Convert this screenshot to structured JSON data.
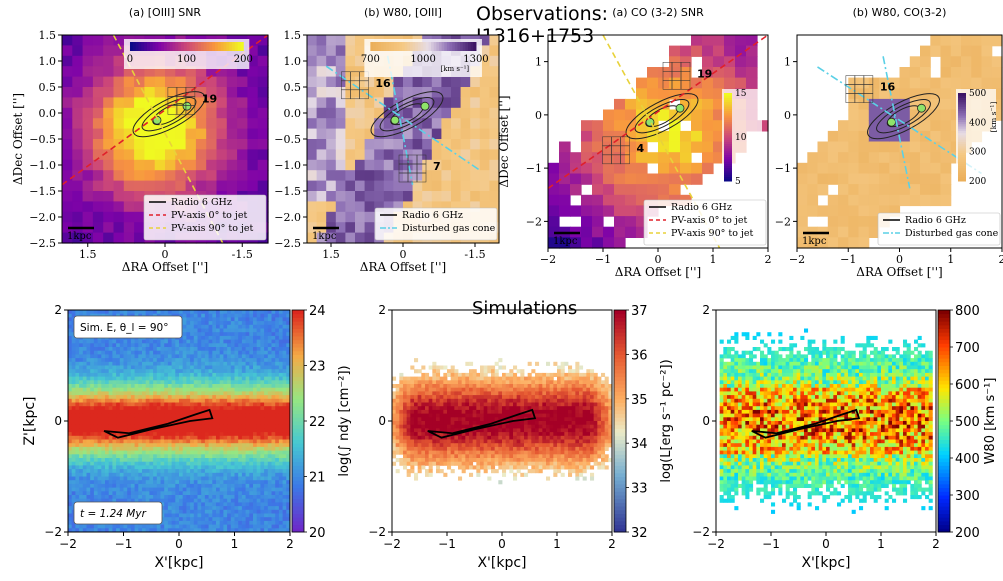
{
  "figure": {
    "observations_title": "Observations:",
    "observations_subtitle": "J1316+1753",
    "simulations_title": "Simulations"
  },
  "chart_data": [
    {
      "type": "heatmap",
      "panel_title": "(a) [OIII] SNR",
      "xlabel": "ΔRA Offset ['']",
      "ylabel": "ΔDec Offset ['']",
      "xlim": [
        2.0,
        -2.0
      ],
      "ylim": [
        -2.5,
        1.5
      ],
      "xticks": [
        -1.5,
        0,
        1.5
      ],
      "xtick_labels": [
        "-1.5",
        "0",
        "1.5"
      ],
      "yticks": [
        -2.5,
        -2.0,
        -1.5,
        -1.0,
        -0.5,
        0.0,
        0.5,
        1.0,
        1.5
      ],
      "ytick_labels": [
        "−2.5",
        "−2.0",
        "−1.5",
        "−1.0",
        "−0.5",
        "0.0",
        "0.5",
        "1.0",
        "1.5"
      ],
      "colorbar": {
        "ticks": [
          0,
          100,
          200
        ],
        "tick_labels": [
          "0",
          "100",
          "200"
        ],
        "colormap": "plasma",
        "orientation": "horizontal"
      },
      "annotations": [
        {
          "text": "19",
          "x": -0.6,
          "y": 0.3
        }
      ],
      "legend": {
        "position": "lower-right",
        "entries": [
          {
            "label": "Radio 6 GHz",
            "style": "solid",
            "color": "#000000"
          },
          {
            "label": "PV-axis 0° to jet",
            "style": "dashed",
            "color": "#e0202a"
          },
          {
            "label": "PV-axis 90° to jet",
            "style": "dashed",
            "color": "#e8d23a"
          }
        ]
      },
      "scalebar": "1kpc"
    },
    {
      "type": "heatmap",
      "panel_title": "(b) W80, [OIII]",
      "xlabel": "ΔRA Offset ['']",
      "ylabel": "",
      "xlim": [
        2.0,
        -2.0
      ],
      "ylim": [
        -2.5,
        1.5
      ],
      "xticks": [
        -1.5,
        0,
        1.5
      ],
      "xtick_labels": [
        "-1.5",
        "0",
        "1.5"
      ],
      "yticks": [
        -2.5,
        -2.0,
        -1.5,
        -1.0,
        -0.5,
        0.0,
        0.5,
        1.0,
        1.5
      ],
      "ytick_labels": [
        "−2.5",
        "−2.0",
        "−1.5",
        "−1.0",
        "−0.5",
        "0.0",
        "0.5",
        "1.0",
        "1.5"
      ],
      "colorbar": {
        "ticks": [
          700,
          1000,
          1300
        ],
        "tick_labels": [
          "700",
          "1000",
          "1300"
        ],
        "unit": "[km s⁻¹]",
        "colormap": "puor",
        "orientation": "horizontal"
      },
      "annotations": [
        {
          "text": "16",
          "x": 0.7,
          "y": 0.6
        },
        {
          "text": "7",
          "x": -0.5,
          "y": -1.0
        }
      ],
      "legend": {
        "position": "lower-right",
        "entries": [
          {
            "label": "Radio 6 GHz",
            "style": "solid",
            "color": "#000000"
          },
          {
            "label": "Disturbed gas cone",
            "style": "dashdot",
            "color": "#5ad0e6"
          }
        ]
      },
      "scalebar": "1kpc"
    },
    {
      "type": "heatmap",
      "panel_title": "(a) CO (3-2) SNR",
      "xlabel": "ΔRA Offset ['']",
      "ylabel": "ΔDec Offset ['']",
      "xlim": [
        -2,
        2
      ],
      "ylim": [
        -2.5,
        1.5
      ],
      "xticks": [
        -2,
        -1,
        0,
        1,
        2
      ],
      "xtick_labels": [
        "−2",
        "−1",
        "0",
        "1",
        "2"
      ],
      "yticks": [
        -2,
        -1,
        0,
        1
      ],
      "ytick_labels": [
        "−2",
        "−1",
        "0",
        "1"
      ],
      "colorbar": {
        "ticks": [
          5,
          10,
          15
        ],
        "tick_labels": [
          "5",
          "10",
          "15"
        ],
        "colormap": "plasma",
        "orientation": "vertical"
      },
      "annotations": [
        {
          "text": "19",
          "x": 0.6,
          "y": 0.8
        },
        {
          "text": "4",
          "x": -0.5,
          "y": -0.6
        }
      ],
      "legend": {
        "position": "lower-right",
        "entries": [
          {
            "label": "Radio 6 GHz",
            "style": "solid",
            "color": "#000000"
          },
          {
            "label": "PV-axis 0° to jet",
            "style": "dashed",
            "color": "#e0202a"
          },
          {
            "label": "PV-axis 90° to jet",
            "style": "dashed",
            "color": "#e8d23a"
          }
        ]
      },
      "scalebar": "1kpc"
    },
    {
      "type": "heatmap",
      "panel_title": "(b) W80, CO(3-2)",
      "xlabel": "ΔRA Offset ['']",
      "ylabel": "",
      "xlim": [
        -2,
        2
      ],
      "ylim": [
        -2.5,
        1.5
      ],
      "xticks": [
        -2,
        -1,
        0,
        1,
        2
      ],
      "xtick_labels": [
        "−2",
        "−1",
        "0",
        "1",
        "2"
      ],
      "yticks": [
        -2,
        -1,
        0,
        1
      ],
      "ytick_labels": [
        "−2",
        "−1",
        "0",
        "1"
      ],
      "colorbar": {
        "ticks": [
          200,
          300,
          400,
          500
        ],
        "tick_labels": [
          "200",
          "300",
          "400",
          "500"
        ],
        "unit": "[km s⁻¹]",
        "colormap": "puor",
        "orientation": "vertical"
      },
      "annotations": [
        {
          "text": "16",
          "x": -0.5,
          "y": 0.55
        }
      ],
      "legend": {
        "position": "lower-right",
        "entries": [
          {
            "label": "Radio 6 GHz",
            "style": "solid",
            "color": "#000000"
          },
          {
            "label": "Disturbed gas cone",
            "style": "dashdot",
            "color": "#5ad0e6"
          }
        ]
      },
      "scalebar": "1kpc"
    },
    {
      "type": "heatmap",
      "panel_title": "",
      "xlabel": "X'[kpc]",
      "ylabel": "Z'[kpc]",
      "xlim": [
        -2,
        2
      ],
      "ylim": [
        -2,
        2
      ],
      "xticks": [
        -2,
        -1,
        0,
        1,
        2
      ],
      "xtick_labels": [
        "−2",
        "−1",
        "0",
        "1",
        "2"
      ],
      "yticks": [
        -2,
        0,
        2
      ],
      "ytick_labels": [
        "−2",
        "0",
        "2"
      ],
      "colorbar": {
        "ticks": [
          20,
          21,
          22,
          23,
          24
        ],
        "tick_labels": [
          "20",
          "21",
          "22",
          "23",
          "24"
        ],
        "label": "log(∫ ndy [cm⁻²])",
        "colormap": "rainbow",
        "orientation": "vertical"
      },
      "annotations": [
        {
          "text": "Sim. E, θ_l = 90°"
        },
        {
          "text": "t = 1.24 Myr"
        }
      ]
    },
    {
      "type": "heatmap",
      "panel_title": "",
      "xlabel": "X'[kpc]",
      "ylabel": "",
      "xlim": [
        -2,
        2
      ],
      "ylim": [
        -2,
        2
      ],
      "xticks": [
        -2,
        -1,
        0,
        1,
        2
      ],
      "xtick_labels": [
        "−2",
        "−1",
        "0",
        "1",
        "2"
      ],
      "yticks": [
        -2,
        0,
        2
      ],
      "ytick_labels": [
        "−2",
        "0",
        "2"
      ],
      "colorbar": {
        "ticks": [
          32,
          33,
          34,
          35,
          36,
          37
        ],
        "tick_labels": [
          "32",
          "33",
          "34",
          "35",
          "36",
          "37"
        ],
        "label": "log(L[erg s⁻¹ pc⁻²])",
        "colormap": "rdylbu_r",
        "orientation": "vertical"
      }
    },
    {
      "type": "heatmap",
      "panel_title": "",
      "xlabel": "X'[kpc]",
      "ylabel": "",
      "xlim": [
        -2,
        2
      ],
      "ylim": [
        -2,
        2
      ],
      "xticks": [
        -2,
        -1,
        0,
        1,
        2
      ],
      "xtick_labels": [
        "−2",
        "−1",
        "0",
        "1",
        "2"
      ],
      "yticks": [
        -2,
        0,
        2
      ],
      "ytick_labels": [
        "−2",
        "0",
        "2"
      ],
      "colorbar": {
        "ticks": [
          200,
          300,
          400,
          500,
          600,
          700,
          800
        ],
        "tick_labels": [
          "200",
          "300",
          "400",
          "500",
          "600",
          "700",
          "800"
        ],
        "label": "W80 [km s⁻¹]",
        "colormap": "jet",
        "orientation": "vertical"
      }
    }
  ]
}
